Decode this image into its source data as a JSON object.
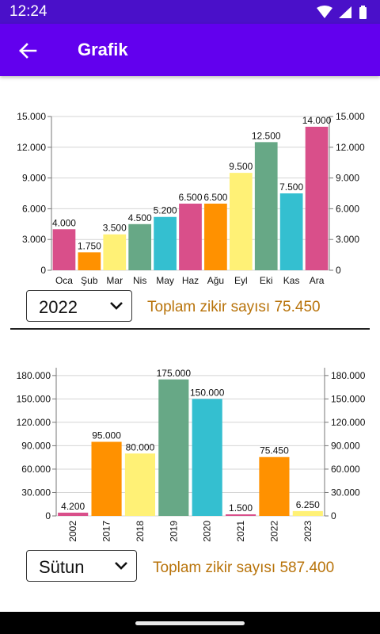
{
  "status": {
    "time": "12:24"
  },
  "app_bar": {
    "title": "Grafik"
  },
  "monthly": {
    "selected_year": "2022",
    "total_text": "Toplam zikir sayısı 75.450"
  },
  "yearly": {
    "selected_type": "Sütun",
    "total_text": "Toplam zikir sayısı 587.400"
  },
  "icons": {
    "back": "arrow-back-icon",
    "wifi": "wifi-icon",
    "signal": "signal-icon",
    "battery": "battery-icon",
    "dropdown": "chevron-down-icon"
  },
  "chart_data": [
    {
      "type": "bar",
      "categories": [
        "Oca",
        "Şub",
        "Mar",
        "Nis",
        "May",
        "Haz",
        "Ağu",
        "Eyl",
        "Eki",
        "Kas",
        "Ara"
      ],
      "values": [
        4000,
        1750,
        3500,
        4500,
        5200,
        6500,
        6500,
        9500,
        12500,
        7500,
        14000
      ],
      "value_labels": [
        "4.000",
        "1.750",
        "3.500",
        "4.500",
        "5.200",
        "6.500",
        "6.500",
        "9.500",
        "12.500",
        "7.500",
        "14.000"
      ],
      "colors": [
        "#d94f8a",
        "#ff9100",
        "#fff176",
        "#67a886",
        "#34bfd0",
        "#d94f8a",
        "#ff9100",
        "#fff176",
        "#67a886",
        "#34bfd0",
        "#d94f8a"
      ],
      "yticks": [
        0,
        3000,
        6000,
        9000,
        12000,
        15000
      ],
      "ytick_labels": [
        "0",
        "3.000",
        "6.000",
        "9.000",
        "12.000",
        "15.000"
      ],
      "ylim": [
        0,
        15000
      ],
      "axes": "left-and-right",
      "grid": true
    },
    {
      "type": "bar",
      "categories": [
        "2002",
        "2017",
        "2018",
        "2019",
        "2020",
        "2021",
        "2022",
        "2023"
      ],
      "values": [
        4200,
        95000,
        80000,
        175000,
        150000,
        1500,
        75450,
        6250
      ],
      "value_labels": [
        "4.200",
        "95.000",
        "80.000",
        "175.000",
        "150.000",
        "1.500",
        "75.450",
        "6.250"
      ],
      "colors": [
        "#d94f8a",
        "#ff9100",
        "#fff176",
        "#67a886",
        "#34bfd0",
        "#d94f8a",
        "#ff9100",
        "#fff176"
      ],
      "yticks": [
        0,
        30000,
        60000,
        90000,
        120000,
        150000,
        180000
      ],
      "ytick_labels": [
        "0",
        "30.000",
        "60.000",
        "90.000",
        "120.000",
        "150.000",
        "180.000"
      ],
      "ylim": [
        0,
        190000
      ],
      "axes": "left-and-right",
      "xtick_rotation": "vertical",
      "grid": true
    }
  ]
}
